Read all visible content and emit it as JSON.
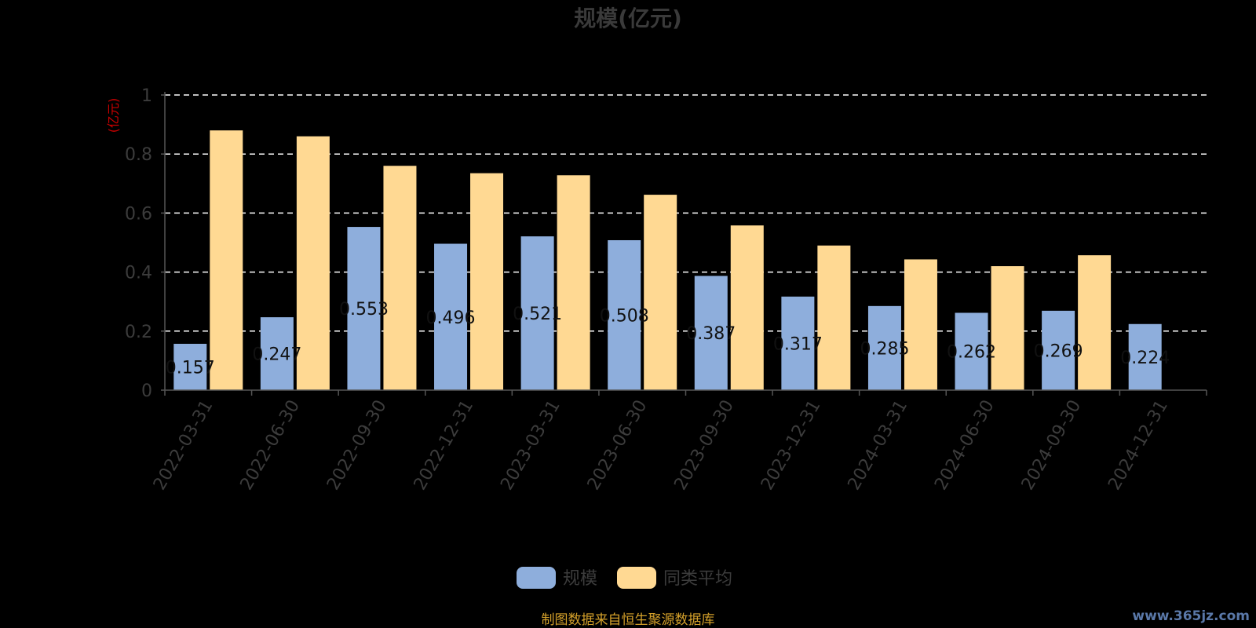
{
  "chart_data": {
    "type": "bar",
    "title": "规模(亿元)",
    "ylabel": "(亿元)",
    "xlabel": "",
    "ylim": [
      0,
      1
    ],
    "yticks": [
      "0",
      "0.2",
      "0.4",
      "0.6",
      "0.8",
      "1"
    ],
    "grid": true,
    "legend_position": "bottom-center",
    "categories": [
      "2022-03-31",
      "2022-06-30",
      "2022-09-30",
      "2022-12-31",
      "2023-03-31",
      "2023-06-30",
      "2023-09-30",
      "2023-12-31",
      "2024-03-31",
      "2024-06-30",
      "2024-09-30",
      "2024-12-31"
    ],
    "series": [
      {
        "name": "规模",
        "color": "#8eaedc",
        "values": [
          0.157,
          0.247,
          0.553,
          0.496,
          0.521,
          0.508,
          0.387,
          0.317,
          0.285,
          0.262,
          0.269,
          0.224
        ],
        "labels": [
          "0.157",
          "0.247",
          "0.553",
          "0.496",
          "0.521",
          "0.508",
          "0.387",
          "0.317",
          "0.285",
          "0.262",
          "0.269",
          "0.224"
        ]
      },
      {
        "name": "同类平均",
        "color": "#ffd993",
        "values": [
          0.88,
          0.86,
          0.76,
          0.735,
          0.728,
          0.662,
          0.558,
          0.49,
          0.443,
          0.42,
          0.457,
          null
        ]
      }
    ]
  },
  "footer": {
    "source": "制图数据来自恒生聚源数据库",
    "watermark": "www.365jz.com"
  }
}
